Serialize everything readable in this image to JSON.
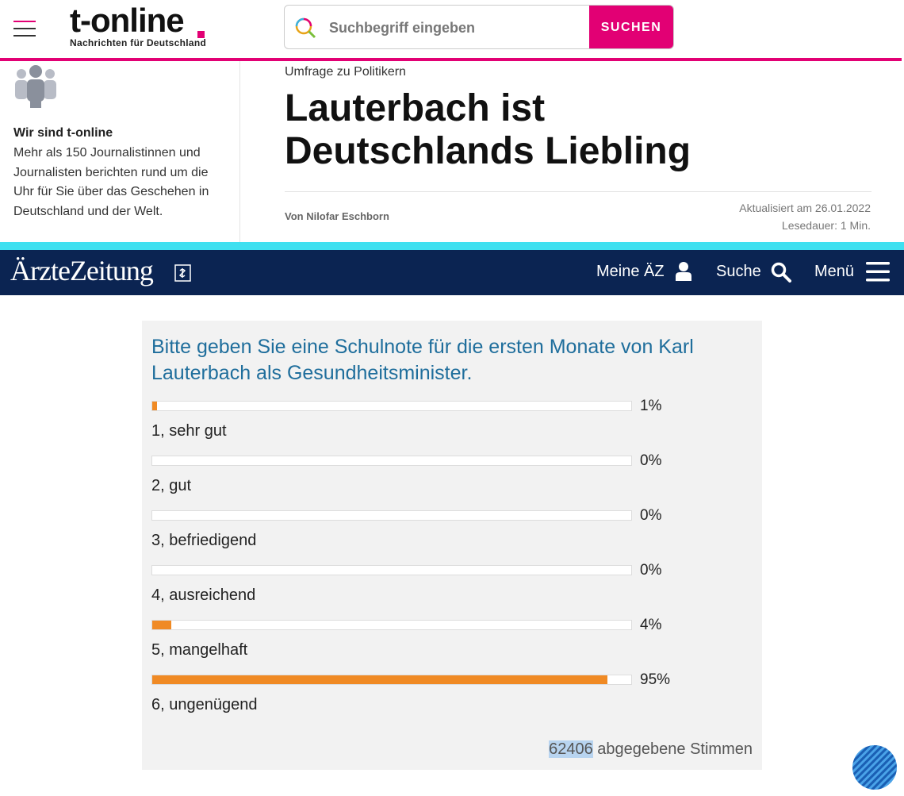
{
  "header": {
    "logo": "t-online",
    "tagline": "Nachrichten für Deutschland",
    "search_placeholder": "Suchbegriff eingeben",
    "search_button": "SUCHEN"
  },
  "sidebar": {
    "title": "Wir sind t-online",
    "text": "Mehr als 150 Journalistinnen und Journalisten berichten rund um die Uhr für Sie über das Geschehen in Deutschland und der Welt."
  },
  "article": {
    "kicker": "Umfrage zu Politikern",
    "title": "Lauterbach ist Deutschlands Liebling",
    "author": "Von Nilofar Eschborn",
    "updated": "Aktualisiert am 26.01.2022",
    "reading_time": "Lesedauer: 1 Min."
  },
  "aerztezeitung": {
    "logo": "ÄrzteZeitung",
    "nav": [
      "Meine ÄZ",
      "Suche",
      "Menü"
    ]
  },
  "poll": {
    "question": "Bitte geben Sie eine Schulnote für die ersten Monate von Karl Lauterbach als Gesundheitsminister.",
    "options": [
      "1, sehr gut",
      "2, gut",
      "3, befriedigend",
      "4, ausreichend",
      "5, mangelhaft",
      "6, ungenügend"
    ],
    "values": [
      1,
      0,
      0,
      0,
      4,
      95
    ],
    "value_labels": [
      "1%",
      "0%",
      "0%",
      "0%",
      "4%",
      "95%"
    ],
    "xlim": [
      0,
      100
    ],
    "color": "#f08a24",
    "votes": "62406",
    "votes_label": "abgegebene Stimmen"
  }
}
